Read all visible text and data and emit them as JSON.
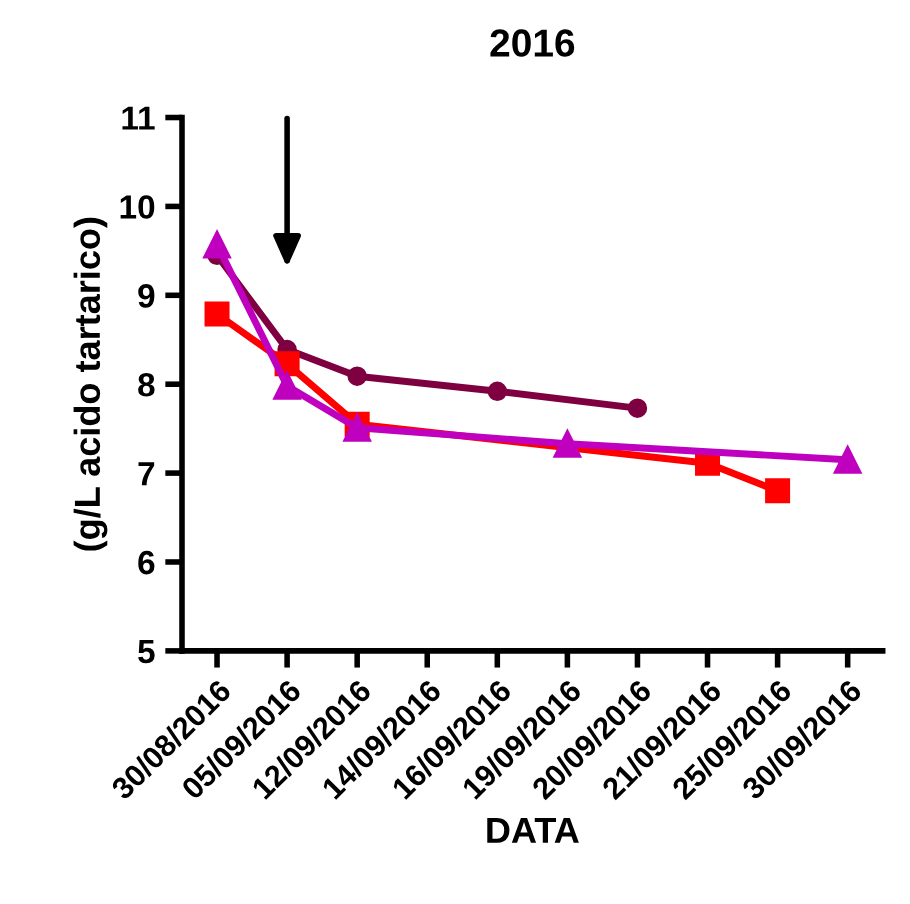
{
  "chart_data": {
    "type": "line",
    "title": "2016",
    "xlabel": "DATA",
    "ylabel": "(g/L acido tartarico)",
    "categories": [
      "30/08/2016",
      "05/09/2016",
      "12/09/2016",
      "14/09/2016",
      "16/09/2016",
      "19/09/2016",
      "20/09/2016",
      "21/09/2016",
      "25/09/2016",
      "30/09/2016"
    ],
    "series": [
      {
        "color": "#7f0040",
        "marker": "circle",
        "values": [
          9.45,
          8.39,
          8.09,
          null,
          7.92,
          null,
          7.73,
          null,
          null,
          null
        ]
      },
      {
        "color": "#ff0000",
        "marker": "square",
        "values": [
          8.79,
          8.23,
          7.55,
          null,
          null,
          null,
          null,
          7.11,
          6.8,
          null
        ]
      },
      {
        "color": "#bf00bf",
        "marker": "triangle",
        "values": [
          9.57,
          7.98,
          7.51,
          null,
          null,
          7.33,
          null,
          null,
          null,
          7.15
        ]
      }
    ],
    "ylim": [
      5,
      11
    ],
    "yticks": [
      5,
      6,
      7,
      8,
      9,
      10,
      11
    ],
    "grid": false,
    "legend": false
  }
}
